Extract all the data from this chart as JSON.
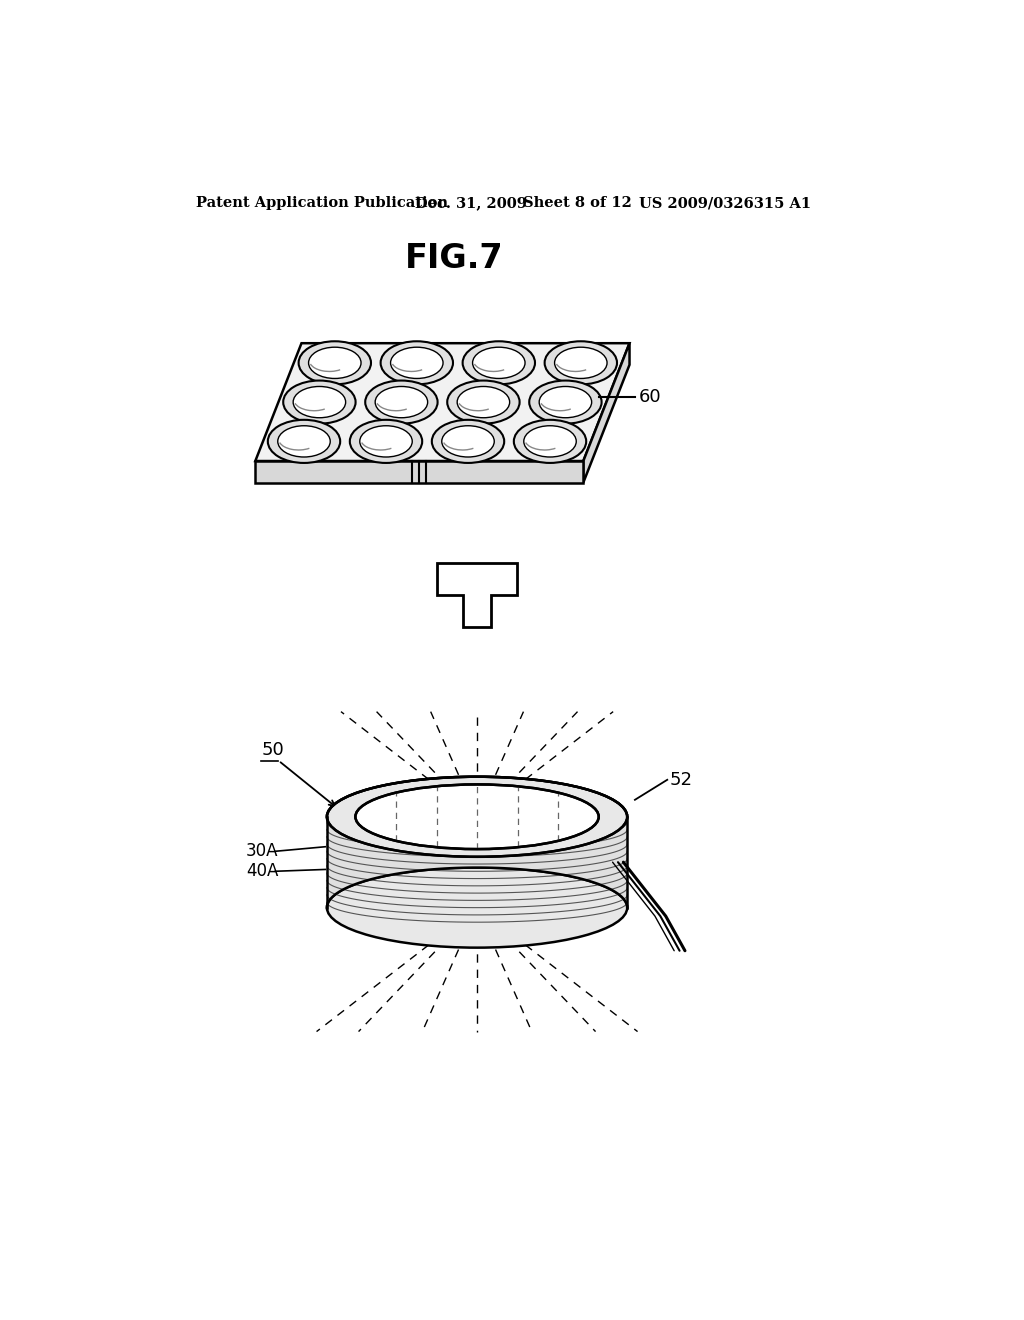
{
  "background_color": "#ffffff",
  "header_text": "Patent Application Publication",
  "header_date": "Dec. 31, 2009",
  "header_sheet": "Sheet 8 of 12",
  "header_patent": "US 2009/0326315 A1",
  "fig_title": "FIG.7",
  "label_60": "60",
  "label_50": "50",
  "label_52": "52",
  "label_30A": "30A",
  "label_40A": "40A",
  "line_color": "#000000",
  "plate_rows": 3,
  "plate_cols": 4,
  "plate_face_color": "#f2f2f2",
  "plate_side_color": "#d8d8d8",
  "well_outer_color": "#e0e0e0",
  "well_inner_color": "#ffffff"
}
